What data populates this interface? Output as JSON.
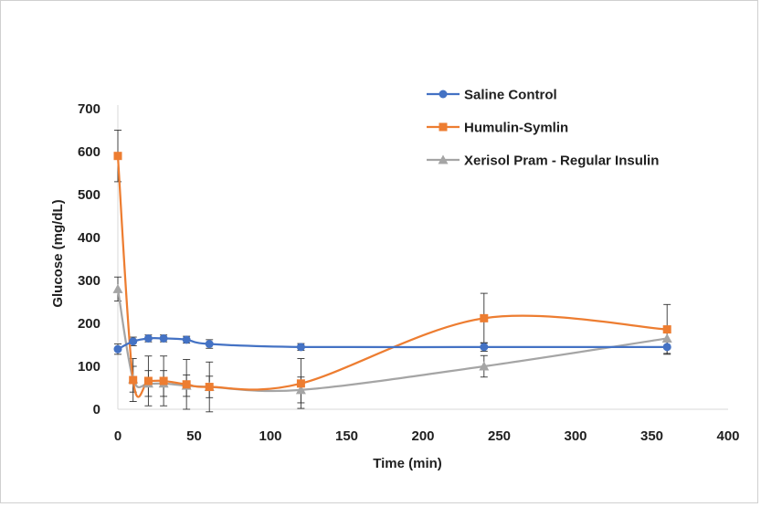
{
  "chart_data": {
    "type": "scatter",
    "xlabel": "Time (min)",
    "ylabel": "Glucose (mg/dL)",
    "xlim": [
      0,
      400
    ],
    "ylim": [
      0,
      700
    ],
    "xticks": [
      "0",
      "50",
      "100",
      "150",
      "200",
      "250",
      "300",
      "350",
      "400"
    ],
    "yticks": [
      "0",
      "100",
      "200",
      "300",
      "400",
      "500",
      "600",
      "700"
    ],
    "grid": false,
    "legend_position": "top-right",
    "series": [
      {
        "name": "Saline Control",
        "color": "#4472c4",
        "marker": "circle",
        "x": [
          0,
          10,
          20,
          30,
          45,
          60,
          120,
          240,
          360
        ],
        "y": [
          140,
          158,
          165,
          165,
          162,
          152,
          145,
          145,
          145
        ],
        "err": [
          12,
          10,
          8,
          8,
          8,
          10,
          8,
          10,
          15
        ]
      },
      {
        "name": "Humulin-Symlin",
        "color": "#ed7d31",
        "marker": "square",
        "x": [
          0,
          10,
          20,
          30,
          45,
          60,
          120,
          240,
          360
        ],
        "y": [
          590,
          68,
          66,
          66,
          58,
          52,
          60,
          212,
          186
        ],
        "err": [
          60,
          50,
          58,
          58,
          58,
          58,
          58,
          58,
          58
        ]
      },
      {
        "name": "Xerisol Pram - Regular Insulin",
        "color": "#a5a5a5",
        "marker": "triangle",
        "x": [
          0,
          10,
          20,
          30,
          45,
          60,
          120,
          240,
          360
        ],
        "y": [
          280,
          70,
          60,
          60,
          55,
          52,
          45,
          100,
          165
        ],
        "err": [
          28,
          30,
          30,
          30,
          25,
          25,
          30,
          25,
          20
        ]
      }
    ]
  }
}
